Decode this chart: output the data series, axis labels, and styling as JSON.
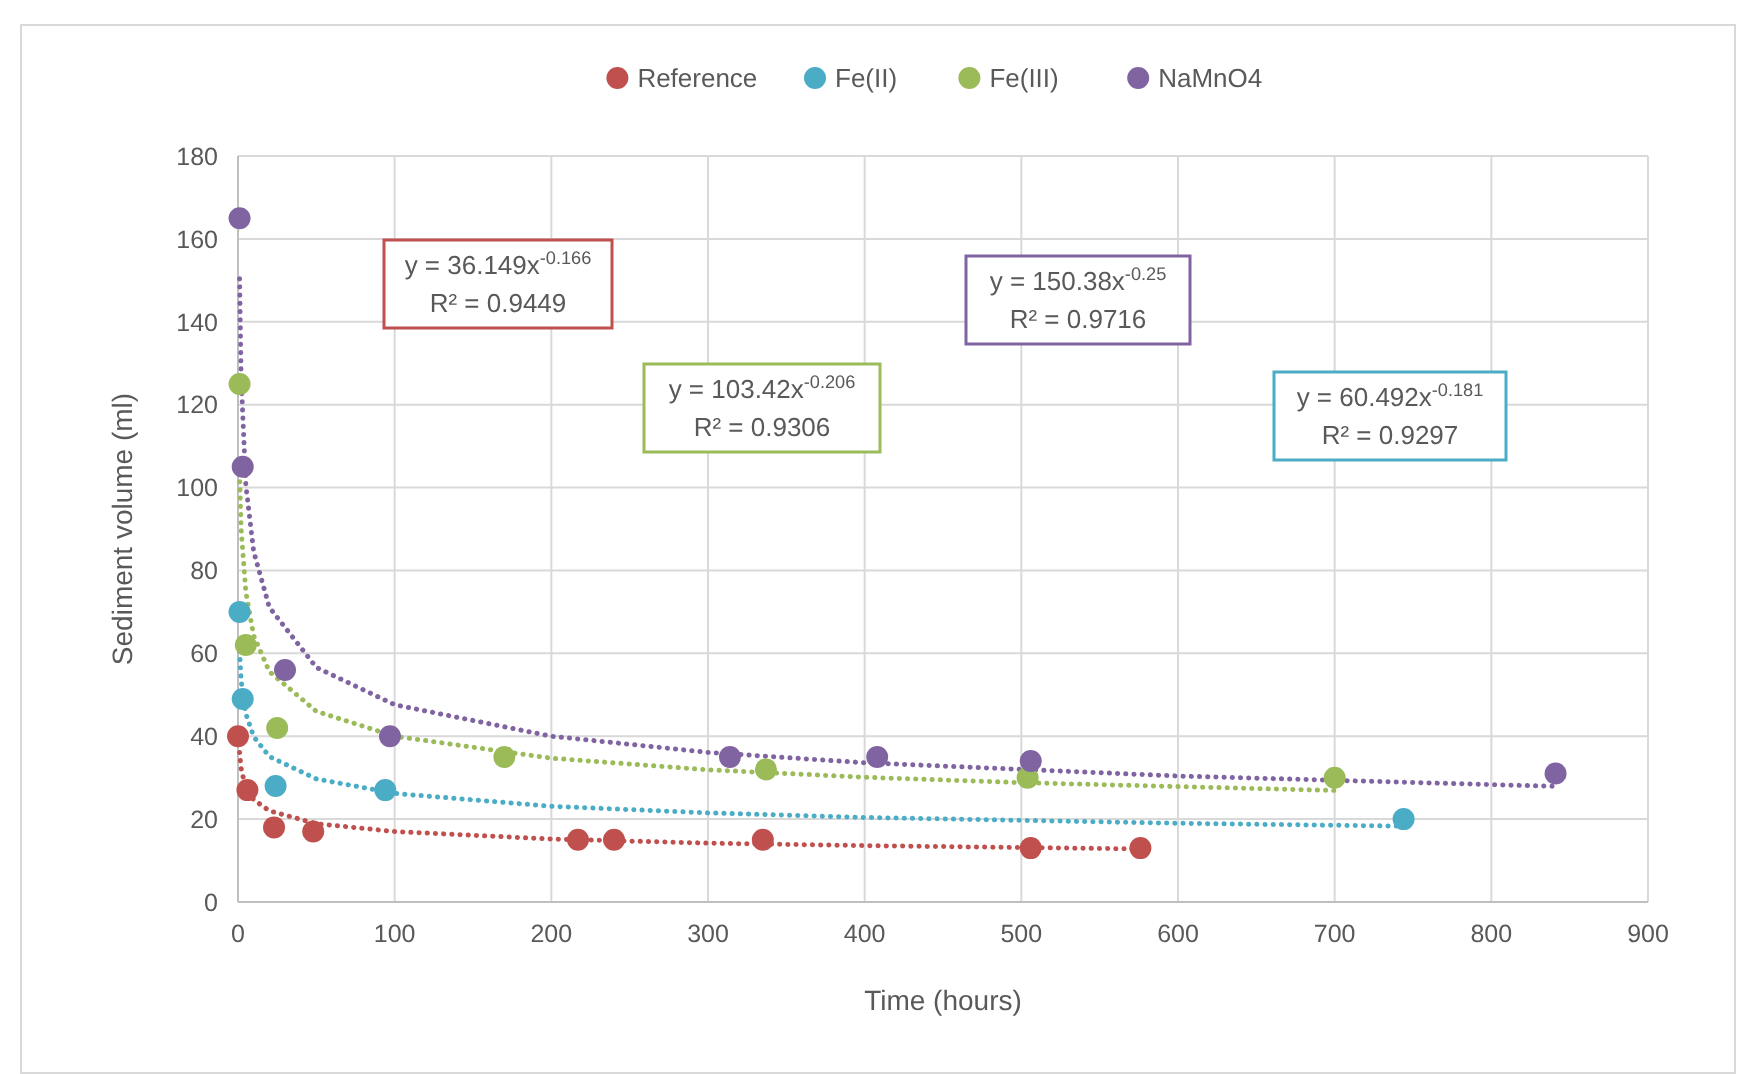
{
  "chart_data": {
    "type": "scatter",
    "xlabel": "Time (hours)",
    "ylabel": "Sediment volume (ml)",
    "xlim": [
      0,
      900
    ],
    "xticks": [
      0,
      100,
      200,
      300,
      400,
      500,
      600,
      700,
      800,
      900
    ],
    "ylim": [
      0,
      180
    ],
    "yticks": [
      0,
      20,
      40,
      60,
      80,
      100,
      120,
      140,
      160,
      180
    ],
    "grid": true,
    "legend": "top",
    "marker": "circle",
    "series": [
      {
        "name": "Reference",
        "color": "#c0504d",
        "x": [
          0,
          6,
          23,
          48,
          217,
          240,
          335,
          506,
          576
        ],
        "values": [
          40,
          27,
          18,
          17,
          15,
          15,
          15,
          13,
          13
        ]
      },
      {
        "name": "Fe(II)",
        "color": "#4bacc6",
        "x": [
          1,
          3,
          24,
          94,
          744
        ],
        "values": [
          70,
          49,
          28,
          27,
          20
        ]
      },
      {
        "name": "Fe(III)",
        "color": "#9bbb59",
        "x": [
          1,
          5,
          25,
          170,
          337,
          504,
          700
        ],
        "values": [
          125,
          62,
          42,
          35,
          32,
          30,
          30
        ]
      },
      {
        "name": "NaMnO4",
        "color": "#8064a2",
        "x": [
          1,
          3,
          30,
          97,
          314,
          408,
          506,
          841
        ],
        "values": [
          165,
          105,
          56,
          40,
          35,
          35,
          34,
          31
        ]
      },
      {
        "type": "line",
        "line_style": "dotted",
        "marker": "none",
        "color": "#c0504d",
        "x": [
          1,
          2,
          5,
          10,
          20,
          50,
          100,
          200,
          300,
          400,
          576
        ],
        "values": [
          36.1,
          32.2,
          27.4,
          24.7,
          22.0,
          18.9,
          17.0,
          15.2,
          14.2,
          13.6,
          12.8
        ]
      },
      {
        "type": "line",
        "line_style": "dotted",
        "marker": "none",
        "color": "#4bacc6",
        "x": [
          1,
          2,
          5,
          10,
          20,
          50,
          100,
          200,
          300,
          400,
          600,
          743
        ],
        "values": [
          60.5,
          53.4,
          45.4,
          39.9,
          35.1,
          29.7,
          26.2,
          23.1,
          21.5,
          20.4,
          19.0,
          18.3
        ]
      },
      {
        "type": "line",
        "line_style": "dotted",
        "marker": "none",
        "color": "#9bbb59",
        "x": [
          1,
          2,
          5,
          10,
          20,
          50,
          100,
          200,
          300,
          400,
          500,
          700
        ],
        "values": [
          103.4,
          89.9,
          74.7,
          64.3,
          55.6,
          46.0,
          40.0,
          34.7,
          31.9,
          30.1,
          28.8,
          26.9
        ]
      },
      {
        "type": "line",
        "line_style": "dotted",
        "marker": "none",
        "color": "#8064a2",
        "x": [
          1,
          2,
          5,
          10,
          20,
          50,
          100,
          200,
          300,
          400,
          600,
          841
        ],
        "values": [
          150.4,
          126.5,
          100.6,
          84.6,
          71.1,
          56.6,
          47.6,
          40.0,
          36.1,
          33.6,
          30.4,
          27.9
        ]
      }
    ],
    "annotations": [
      "y = 36.149x$^{-0.166}$\nR² = 0.9449",
      "y = 60.492x$^{-0.181}$\nR² = 0.9297",
      "y = 103.42x$^{-0.206}$\nR² = 0.9306",
      "y = 150.38x$^{-0.25}$\nR² = 0.9716"
    ]
  }
}
